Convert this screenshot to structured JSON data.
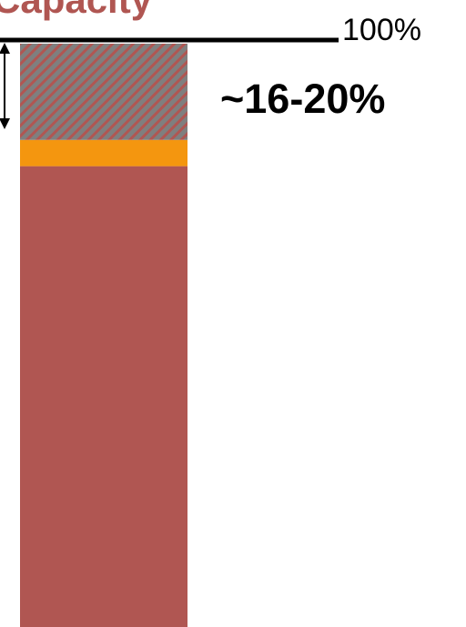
{
  "chart_data": {
    "type": "bar",
    "title_fragment": "Capacity",
    "reference_line_label": "100%",
    "annotation": "~16-20%",
    "ylim": [
      0,
      100
    ],
    "segments": [
      {
        "name": "",
        "from": 0,
        "to": 79,
        "color": "#b05652",
        "pattern": "solid"
      },
      {
        "name": "",
        "from": 79,
        "to": 83.5,
        "color": "#f4960f",
        "pattern": "solid"
      },
      {
        "name": "",
        "from": 83.5,
        "to": 100,
        "color": "#7f7f7f",
        "pattern": "hatched",
        "hatch_color": "#b05652"
      }
    ],
    "grid": false,
    "legend": "none"
  },
  "colors": {
    "title": "#b05652",
    "line": "#000000",
    "text": "#000000"
  }
}
